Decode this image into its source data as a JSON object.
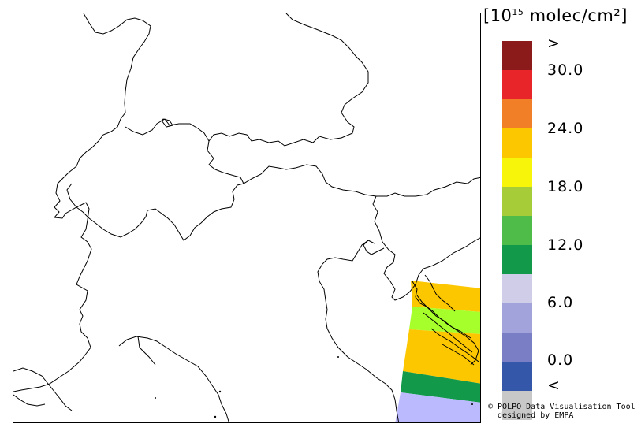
{
  "legend": {
    "title_base": "[10",
    "title_exp": "15",
    "title_unit": " molec/cm²]",
    "labels": [
      ">",
      "30.0",
      "24.0",
      "18.0",
      "12.0",
      "6.0",
      "0.0",
      "<"
    ],
    "colors": [
      "#8b1a1a",
      "#e8262a",
      "#f07f28",
      "#fdc700",
      "#f6f50a",
      "#a6cd38",
      "#4fbb49",
      "#12994a",
      "#cfcde8",
      "#a3a3dc",
      "#7a7fc5",
      "#3557a9",
      "#c8c8c8"
    ]
  },
  "map": {
    "stripe_colors": {
      "orange": "#fdc700",
      "green": "#a6ff2a",
      "darkgreen": "#12994a",
      "lavender": "#bcbaff"
    }
  },
  "credit": {
    "line1": "© POLPO Data Visualisation Tool",
    "line2": "  designed by EMPA"
  }
}
